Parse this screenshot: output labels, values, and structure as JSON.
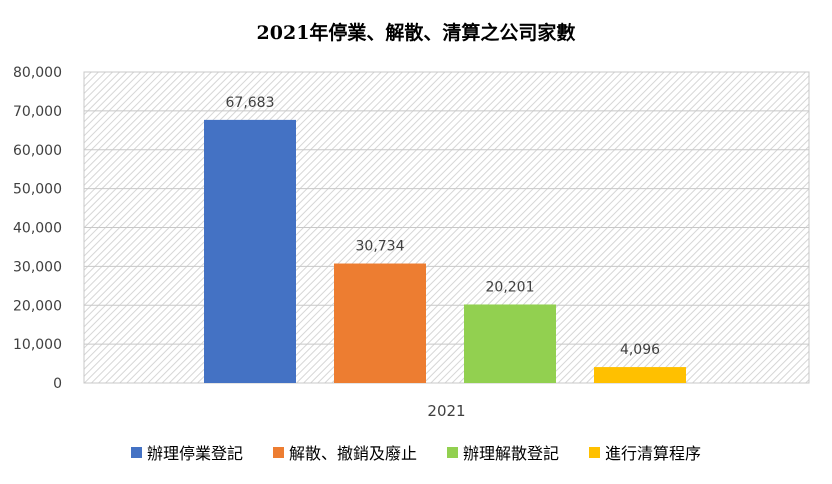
{
  "chart_data": {
    "type": "bar",
    "title": "2021年停業、解散、清算之公司家數",
    "categories": [
      "2021"
    ],
    "series": [
      {
        "name": "辦理停業登記",
        "values": [
          67683
        ],
        "label": "67,683",
        "color": "#4472C4"
      },
      {
        "name": "解散、撤銷及廢止",
        "values": [
          30734
        ],
        "label": "30,734",
        "color": "#ED7D31"
      },
      {
        "name": "辦理解散登記",
        "values": [
          20201
        ],
        "label": "20,201",
        "color": "#92D050"
      },
      {
        "name": "進行清算程序",
        "values": [
          4096
        ],
        "label": "4,096",
        "color": "#FFC000"
      }
    ],
    "ylim": [
      0,
      80000
    ],
    "yticks": [
      "0",
      "10,000",
      "20,000",
      "30,000",
      "40,000",
      "50,000",
      "60,000",
      "70,000",
      "80,000"
    ],
    "xlabel": "",
    "ylabel": "",
    "legend_position": "bottom",
    "grid": true
  }
}
